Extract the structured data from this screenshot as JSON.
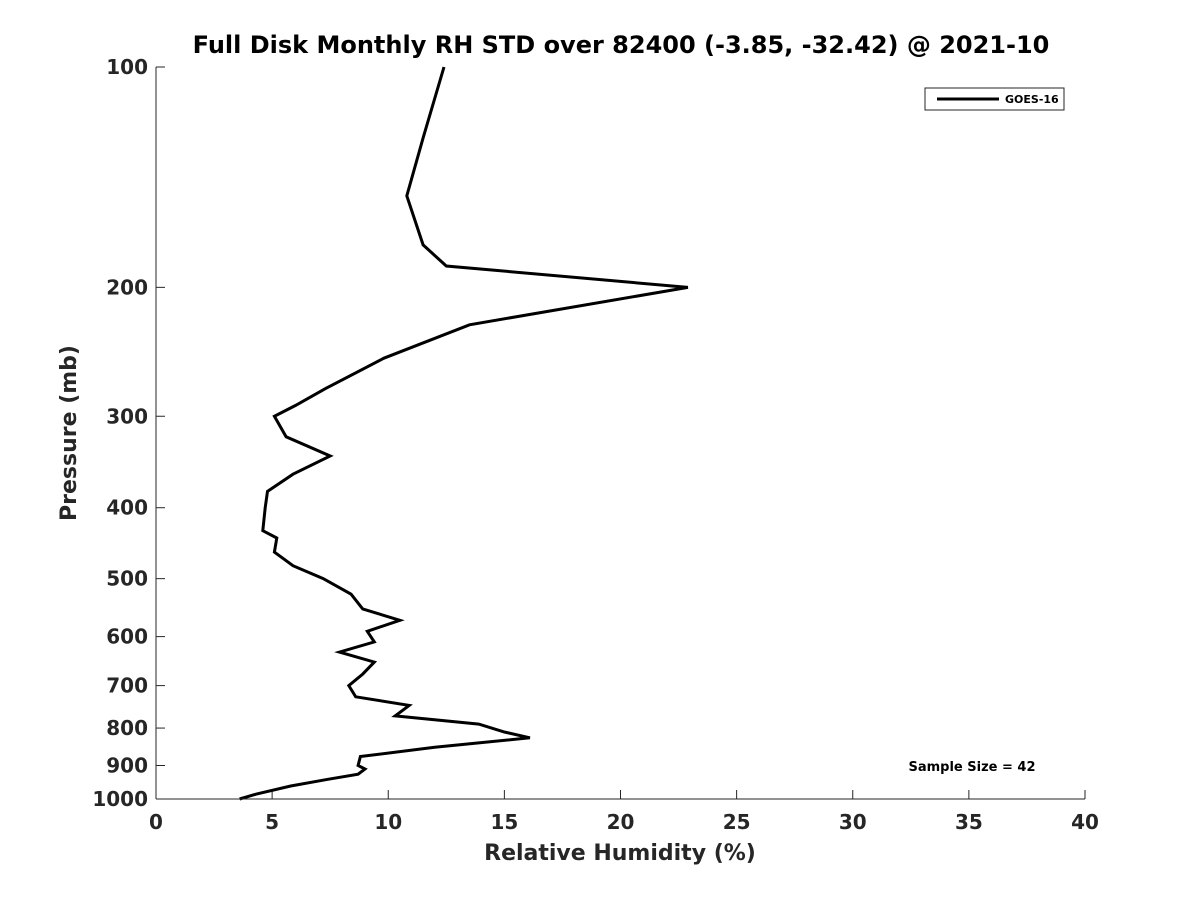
{
  "chart_data": {
    "type": "line",
    "title": "Full Disk Monthly RH STD over 82400 (-3.85, -32.42) @ 2021-10",
    "xlabel": "Relative Humidity (%)",
    "ylabel": "Pressure (mb)",
    "xlim": [
      0,
      40
    ],
    "ylim": [
      100,
      1000
    ],
    "y_scale": "log",
    "y_reversed": true,
    "x_ticks": [
      "0",
      "5",
      "10",
      "15",
      "20",
      "25",
      "30",
      "35",
      "40"
    ],
    "y_ticks": [
      "100",
      "200",
      "300",
      "400",
      "500",
      "600",
      "700",
      "800",
      "900",
      "1000"
    ],
    "grid": false,
    "legend_position": "top-right",
    "series": [
      {
        "name": "GOES-16",
        "color": "#000000",
        "points": [
          [
            12.4,
            100
          ],
          [
            11.5,
            125
          ],
          [
            10.8,
            150
          ],
          [
            11.5,
            175
          ],
          [
            12.5,
            187
          ],
          [
            22.9,
            200
          ],
          [
            13.5,
            225
          ],
          [
            9.8,
            250
          ],
          [
            7.3,
            275
          ],
          [
            6.0,
            290
          ],
          [
            5.1,
            300
          ],
          [
            5.6,
            320
          ],
          [
            7.5,
            340
          ],
          [
            5.9,
            360
          ],
          [
            4.8,
            380
          ],
          [
            4.7,
            400
          ],
          [
            4.6,
            430
          ],
          [
            5.2,
            440
          ],
          [
            5.1,
            460
          ],
          [
            5.9,
            480
          ],
          [
            7.2,
            500
          ],
          [
            8.4,
            525
          ],
          [
            8.9,
            550
          ],
          [
            10.5,
            570
          ],
          [
            9.1,
            590
          ],
          [
            9.4,
            610
          ],
          [
            7.9,
            630
          ],
          [
            9.4,
            650
          ],
          [
            8.9,
            675
          ],
          [
            8.3,
            700
          ],
          [
            8.6,
            725
          ],
          [
            10.9,
            745
          ],
          [
            10.3,
            770
          ],
          [
            13.9,
            790
          ],
          [
            15.0,
            810
          ],
          [
            16.1,
            825
          ],
          [
            12.0,
            850
          ],
          [
            8.8,
            875
          ],
          [
            8.7,
            900
          ],
          [
            9.0,
            910
          ],
          [
            8.7,
            925
          ],
          [
            7.4,
            940
          ],
          [
            5.8,
            960
          ],
          [
            4.3,
            985
          ],
          [
            3.6,
            1000
          ]
        ]
      }
    ],
    "annotations": [
      "Sample Size = 42"
    ]
  }
}
